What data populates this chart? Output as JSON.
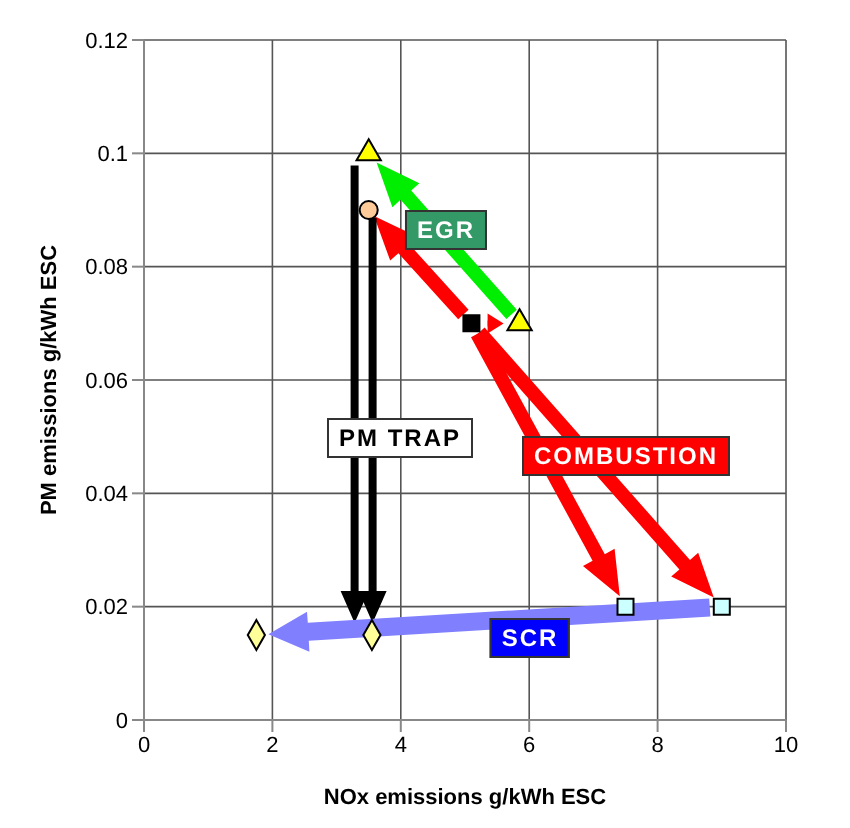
{
  "chart_data": {
    "type": "scatter",
    "xlabel": "NOx emissions g/kWh ESC",
    "ylabel": "PM emissions g/kWh ESC",
    "xlim": [
      0,
      10
    ],
    "xticks": [
      0,
      2,
      4,
      6,
      8,
      10
    ],
    "ylim": [
      0,
      0.12
    ],
    "yticks": [
      0,
      0.02,
      0.04,
      0.06,
      0.08,
      0.1,
      0.12
    ],
    "grid": true,
    "annotations": [
      "EGR",
      "COMBUSTION",
      "PM TRAP",
      "SCR"
    ],
    "series": [
      {
        "x": [
          3.5,
          5.85
        ],
        "values": [
          0.1,
          0.07
        ],
        "color": "#ffff00",
        "marker": "triangle"
      },
      {
        "x": [
          3.5
        ],
        "values": [
          0.09
        ],
        "color": "#ffcc99",
        "marker": "circle"
      },
      {
        "x": [
          5.1
        ],
        "values": [
          0.07
        ],
        "color": "#000000",
        "marker": "square"
      },
      {
        "x": [
          7.5,
          9
        ],
        "values": [
          0.02,
          0.02
        ],
        "color": "#ccffff",
        "marker": "square"
      },
      {
        "x": [
          1.75,
          3.55
        ],
        "values": [
          0.015,
          0.015
        ],
        "color": "#ffff99",
        "marker": "diamond"
      }
    ]
  }
}
